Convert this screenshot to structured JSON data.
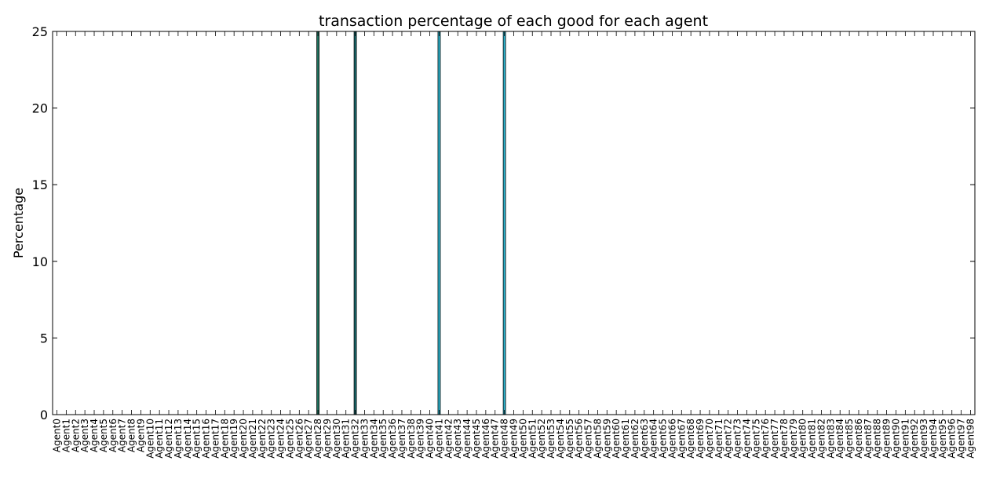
{
  "chart_data": {
    "type": "bar",
    "title": "transaction percentage of each good for each agent",
    "xlabel": "",
    "ylabel": "Percentage",
    "ylim": [
      0,
      25
    ],
    "yticks": [
      0,
      5,
      10,
      15,
      20,
      25
    ],
    "grid": false,
    "categories": [
      "Agent0",
      "Agent1",
      "Agent2",
      "Agent3",
      "Agent4",
      "Agent5",
      "Agent6",
      "Agent7",
      "Agent8",
      "Agent9",
      "Agent10",
      "Agent11",
      "Agent12",
      "Agent13",
      "Agent14",
      "Agent15",
      "Agent16",
      "Agent17",
      "Agent18",
      "Agent19",
      "Agent20",
      "Agent21",
      "Agent22",
      "Agent23",
      "Agent24",
      "Agent25",
      "Agent26",
      "Agent27",
      "Agent28",
      "Agent29",
      "Agent30",
      "Agent31",
      "Agent32",
      "Agent33",
      "Agent34",
      "Agent35",
      "Agent36",
      "Agent37",
      "Agent38",
      "Agent39",
      "Agent40",
      "Agent41",
      "Agent42",
      "Agent43",
      "Agent44",
      "Agent45",
      "Agent46",
      "Agent47",
      "Agent48",
      "Agent49",
      "Agent50",
      "Agent51",
      "Agent52",
      "Agent53",
      "Agent54",
      "Agent55",
      "Agent56",
      "Agent57",
      "Agent58",
      "Agent59",
      "Agent60",
      "Agent61",
      "Agent62",
      "Agent63",
      "Agent64",
      "Agent65",
      "Agent66",
      "Agent67",
      "Agent68",
      "Agent69",
      "Agent70",
      "Agent71",
      "Agent72",
      "Agent73",
      "Agent74",
      "Agent75",
      "Agent76",
      "Agent77",
      "Agent78",
      "Agent79",
      "Agent80",
      "Agent81",
      "Agent82",
      "Agent83",
      "Agent84",
      "Agent85",
      "Agent86",
      "Agent87",
      "Agent88",
      "Agent89",
      "Agent90",
      "Agent91",
      "Agent92",
      "Agent93",
      "Agent94",
      "Agent95",
      "Agent96",
      "Agent97",
      "Agent98"
    ],
    "bars": [
      {
        "category": "Agent28",
        "value": 25,
        "color": "#1f6e5c"
      },
      {
        "category": "Agent32",
        "value": 25,
        "color": "#1a6a6e"
      },
      {
        "category": "Agent41",
        "value": 25,
        "color": "#2eb6d0"
      },
      {
        "category": "Agent48",
        "value": 25,
        "color": "#2eb6d0"
      }
    ]
  }
}
